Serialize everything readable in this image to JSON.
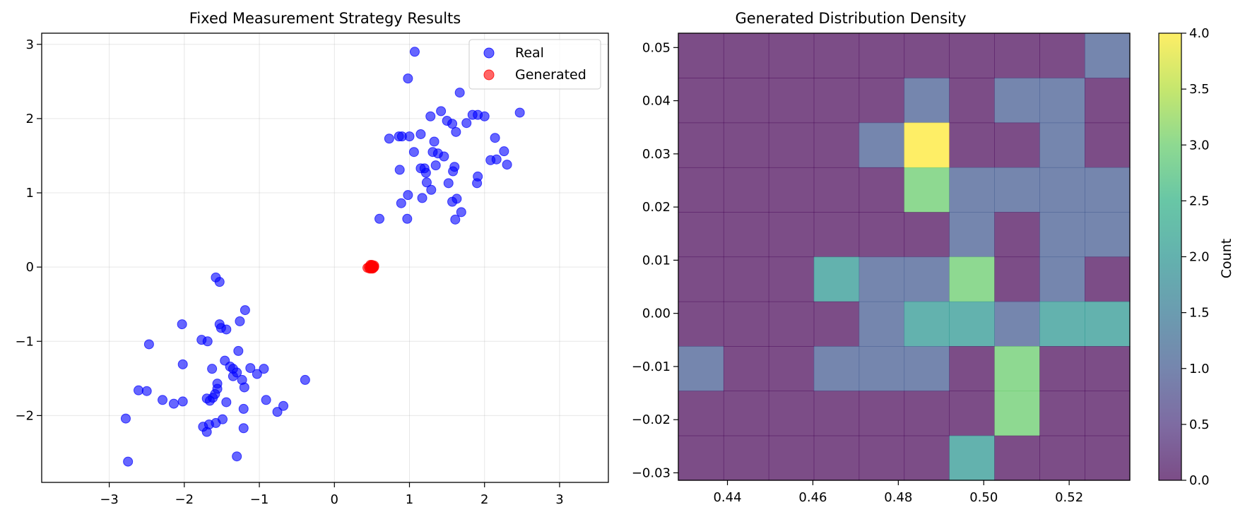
{
  "chart_data": [
    {
      "type": "scatter",
      "title": "Fixed Measurement Strategy Results",
      "xlabel": "",
      "ylabel": "",
      "xlim": [
        -3.9,
        3.65
      ],
      "ylim": [
        -2.9,
        3.15
      ],
      "xticks": [
        -3,
        -2,
        -1,
        0,
        1,
        2,
        3
      ],
      "yticks": [
        -2,
        -1,
        0,
        1,
        2,
        3
      ],
      "xtick_labels": [
        "−3",
        "−2",
        "−1",
        "0",
        "1",
        "2",
        "3"
      ],
      "ytick_labels": [
        "−2",
        "−1",
        "0",
        "1",
        "2",
        "3"
      ],
      "grid": true,
      "legend_position": "upper-right",
      "series": [
        {
          "name": "Real",
          "color": "#0000ff",
          "points": [
            [
              1.07,
              2.9
            ],
            [
              0.98,
              2.54
            ],
            [
              1.67,
              2.35
            ],
            [
              2.47,
              2.08
            ],
            [
              1.42,
              2.1
            ],
            [
              1.28,
              2.03
            ],
            [
              1.5,
              1.97
            ],
            [
              1.57,
              1.93
            ],
            [
              1.84,
              2.05
            ],
            [
              1.91,
              2.05
            ],
            [
              2.0,
              2.03
            ],
            [
              1.76,
              1.94
            ],
            [
              1.62,
              1.82
            ],
            [
              2.14,
              1.74
            ],
            [
              0.73,
              1.73
            ],
            [
              0.86,
              1.76
            ],
            [
              0.9,
              1.76
            ],
            [
              1.0,
              1.76
            ],
            [
              1.15,
              1.79
            ],
            [
              1.33,
              1.69
            ],
            [
              1.06,
              1.55
            ],
            [
              1.31,
              1.55
            ],
            [
              1.38,
              1.53
            ],
            [
              1.46,
              1.49
            ],
            [
              2.26,
              1.56
            ],
            [
              2.08,
              1.44
            ],
            [
              2.16,
              1.45
            ],
            [
              2.3,
              1.38
            ],
            [
              1.35,
              1.37
            ],
            [
              1.6,
              1.35
            ],
            [
              1.15,
              1.33
            ],
            [
              1.2,
              1.33
            ],
            [
              0.87,
              1.31
            ],
            [
              1.22,
              1.27
            ],
            [
              1.58,
              1.29
            ],
            [
              1.91,
              1.22
            ],
            [
              1.23,
              1.14
            ],
            [
              1.52,
              1.13
            ],
            [
              1.9,
              1.13
            ],
            [
              1.29,
              1.04
            ],
            [
              0.98,
              0.97
            ],
            [
              1.63,
              0.92
            ],
            [
              1.17,
              0.93
            ],
            [
              1.57,
              0.88
            ],
            [
              0.89,
              0.86
            ],
            [
              1.69,
              0.74
            ],
            [
              0.6,
              0.65
            ],
            [
              0.97,
              0.65
            ],
            [
              1.61,
              0.64
            ],
            [
              -1.58,
              -0.14
            ],
            [
              -1.53,
              -0.2
            ],
            [
              -1.19,
              -0.58
            ],
            [
              -1.26,
              -0.73
            ],
            [
              -2.03,
              -0.77
            ],
            [
              -1.53,
              -0.77
            ],
            [
              -1.51,
              -0.82
            ],
            [
              -1.44,
              -0.84
            ],
            [
              -1.77,
              -0.98
            ],
            [
              -1.69,
              -1.0
            ],
            [
              -2.47,
              -1.04
            ],
            [
              -1.28,
              -1.13
            ],
            [
              -1.46,
              -1.26
            ],
            [
              -2.02,
              -1.31
            ],
            [
              -1.39,
              -1.34
            ],
            [
              -1.63,
              -1.37
            ],
            [
              -1.35,
              -1.37
            ],
            [
              -1.12,
              -1.36
            ],
            [
              -0.94,
              -1.37
            ],
            [
              -1.3,
              -1.42
            ],
            [
              -1.35,
              -1.47
            ],
            [
              -1.03,
              -1.44
            ],
            [
              -1.56,
              -1.57
            ],
            [
              -1.23,
              -1.52
            ],
            [
              -0.39,
              -1.52
            ],
            [
              -1.56,
              -1.64
            ],
            [
              -2.61,
              -1.66
            ],
            [
              -2.5,
              -1.67
            ],
            [
              -1.2,
              -1.62
            ],
            [
              -1.59,
              -1.71
            ],
            [
              -1.62,
              -1.76
            ],
            [
              -1.7,
              -1.77
            ],
            [
              -1.66,
              -1.8
            ],
            [
              -2.29,
              -1.79
            ],
            [
              -2.02,
              -1.81
            ],
            [
              -0.91,
              -1.79
            ],
            [
              -1.44,
              -1.82
            ],
            [
              -2.14,
              -1.84
            ],
            [
              -0.68,
              -1.87
            ],
            [
              -1.21,
              -1.91
            ],
            [
              -0.76,
              -1.95
            ],
            [
              -2.78,
              -2.04
            ],
            [
              -1.49,
              -2.05
            ],
            [
              -1.58,
              -2.1
            ],
            [
              -1.67,
              -2.12
            ],
            [
              -1.75,
              -2.15
            ],
            [
              -1.21,
              -2.17
            ],
            [
              -1.7,
              -2.22
            ],
            [
              -1.3,
              -2.55
            ],
            [
              -2.75,
              -2.62
            ]
          ]
        },
        {
          "name": "Generated",
          "color": "#ff0000",
          "points": [
            [
              0.44,
              -0.01
            ],
            [
              0.46,
              0.0
            ],
            [
              0.47,
              -0.02
            ],
            [
              0.48,
              0.01
            ],
            [
              0.48,
              0.03
            ],
            [
              0.49,
              0.0
            ],
            [
              0.49,
              0.02
            ],
            [
              0.49,
              -0.02
            ],
            [
              0.5,
              0.01
            ],
            [
              0.5,
              -0.01
            ],
            [
              0.5,
              0.03
            ],
            [
              0.51,
              0.0
            ],
            [
              0.51,
              0.02
            ],
            [
              0.51,
              -0.02
            ],
            [
              0.52,
              0.01
            ],
            [
              0.52,
              -0.01
            ],
            [
              0.53,
              0.02
            ],
            [
              0.53,
              0.0
            ]
          ]
        }
      ]
    },
    {
      "type": "heatmap",
      "title": "Generated Distribution Density",
      "xlabel": "",
      "ylabel": "",
      "xlim": [
        0.4285,
        0.5342
      ],
      "ylim": [
        -0.0314,
        0.0527
      ],
      "xticks": [
        0.44,
        0.46,
        0.48,
        0.5,
        0.52
      ],
      "yticks": [
        -0.03,
        -0.02,
        -0.01,
        0.0,
        0.01,
        0.02,
        0.03,
        0.04,
        0.05
      ],
      "xtick_labels": [
        "0.44",
        "0.46",
        "0.48",
        "0.50",
        "0.52"
      ],
      "ytick_labels": [
        "−0.03",
        "−0.02",
        "−0.01",
        "0.00",
        "0.01",
        "0.02",
        "0.03",
        "0.04",
        "0.05"
      ],
      "bins": [
        10,
        10
      ],
      "counts_rows_top_to_bottom": [
        [
          0,
          0,
          0,
          0,
          0,
          0,
          0,
          0,
          0,
          1
        ],
        [
          0,
          0,
          0,
          0,
          0,
          1,
          0,
          1,
          1,
          0
        ],
        [
          0,
          0,
          0,
          0,
          1,
          4,
          0,
          0,
          1,
          0
        ],
        [
          0,
          0,
          0,
          0,
          0,
          3,
          1,
          1,
          1,
          1
        ],
        [
          0,
          0,
          0,
          0,
          0,
          0,
          1,
          0,
          1,
          1
        ],
        [
          0,
          0,
          0,
          2,
          1,
          1,
          3,
          0,
          1,
          0
        ],
        [
          0,
          0,
          0,
          0,
          1,
          2,
          2,
          1,
          2,
          2
        ],
        [
          1,
          0,
          0,
          1,
          1,
          1,
          0,
          3,
          0,
          0
        ],
        [
          0,
          0,
          0,
          0,
          0,
          0,
          0,
          3,
          0,
          0
        ],
        [
          0,
          0,
          0,
          0,
          0,
          0,
          2,
          0,
          0,
          0
        ]
      ],
      "colormap": "viridis",
      "colorbar": {
        "label": "Count",
        "range": [
          0.0,
          4.0
        ],
        "ticks": [
          0.0,
          0.5,
          1.0,
          1.5,
          2.0,
          2.5,
          3.0,
          3.5,
          4.0
        ],
        "tick_labels": [
          "0.0",
          "0.5",
          "1.0",
          "1.5",
          "2.0",
          "2.5",
          "3.0",
          "3.5",
          "4.0"
        ]
      }
    }
  ]
}
